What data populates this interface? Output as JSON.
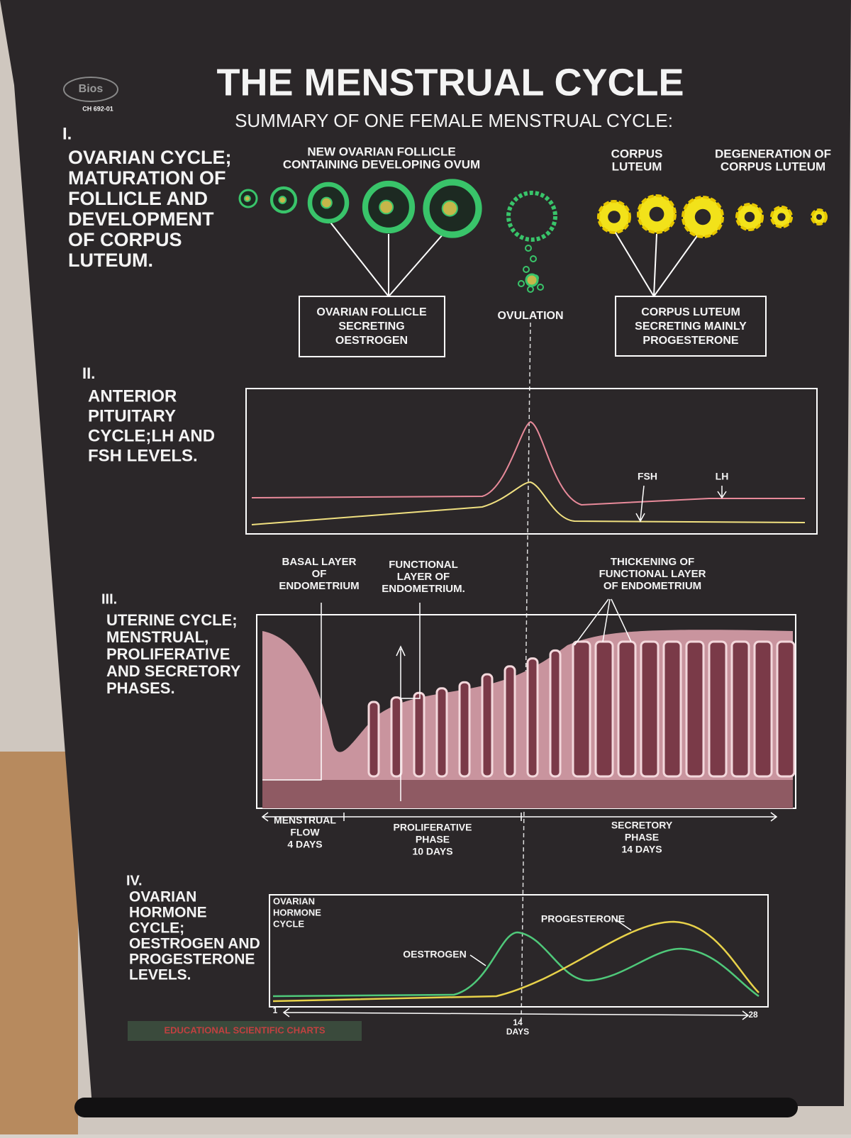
{
  "logo": {
    "brand": "Bios",
    "code": "CH 692-01"
  },
  "header": {
    "title": "THE MENSTRUAL CYCLE",
    "subtitle": "SUMMARY OF ONE FEMALE MENSTRUAL CYCLE:"
  },
  "ovarian": {
    "numeral": "I.",
    "heading": [
      "OVARIAN CYCLE;",
      "MATURATION OF",
      "FOLLICLE AND",
      "DEVELOPMENT",
      "OF CORPUS",
      "LUTEUM."
    ],
    "new_follicle": [
      "NEW OVARIAN FOLLICLE",
      "CONTAINING DEVELOPING OVUM"
    ],
    "corpus_luteum": [
      "CORPUS",
      "LUTEUM"
    ],
    "degeneration": [
      "DEGENERATION OF",
      "CORPUS LUTEUM"
    ],
    "follicle_box": [
      "OVARIAN FOLLICLE",
      "SECRETING",
      "OESTROGEN"
    ],
    "ovulation": "OVULATION",
    "luteum_box": [
      "CORPUS LUTEUM",
      "SECRETING MAINLY",
      "PROGESTERONE"
    ]
  },
  "pituitary": {
    "numeral": "II.",
    "heading": [
      "ANTERIOR",
      "PITUITARY",
      "CYCLE;LH AND",
      "FSH LEVELS."
    ],
    "fsh": "FSH",
    "lh": "LH"
  },
  "uterine": {
    "numeral": "III.",
    "heading": [
      "UTERINE CYCLE;",
      "MENSTRUAL,",
      "PROLIFERATIVE",
      "AND SECRETORY",
      "PHASES."
    ],
    "basal": [
      "BASAL LAYER",
      "OF",
      "ENDOMETRIUM"
    ],
    "functional": [
      "FUNCTIONAL",
      "LAYER OF",
      "ENDOMETRIUM."
    ],
    "thickening": [
      "THICKENING OF",
      "FUNCTIONAL LAYER",
      "OF ENDOMETRIUM"
    ],
    "menstrual": [
      "MENSTRUAL",
      "FLOW",
      "4 DAYS"
    ],
    "proliferative": [
      "PROLIFERATIVE",
      "PHASE",
      "10 DAYS"
    ],
    "secretory": [
      "SECRETORY",
      "PHASE",
      "14 DAYS"
    ]
  },
  "hormone": {
    "numeral": "IV.",
    "heading": [
      "OVARIAN",
      "HORMONE",
      "CYCLE;",
      "OESTROGEN AND",
      "PROGESTERONE",
      "LEVELS."
    ],
    "box_label": [
      "OVARIAN",
      "HORMONE",
      "CYCLE"
    ],
    "oestrogen": "OESTROGEN",
    "progesterone": "PROGESTERONE",
    "day_start": "1",
    "day_mid": [
      "14",
      "DAYS"
    ],
    "day_end": "28"
  },
  "footer": {
    "strip": "EDUCATIONAL SCIENTIFIC CHARTS"
  }
}
